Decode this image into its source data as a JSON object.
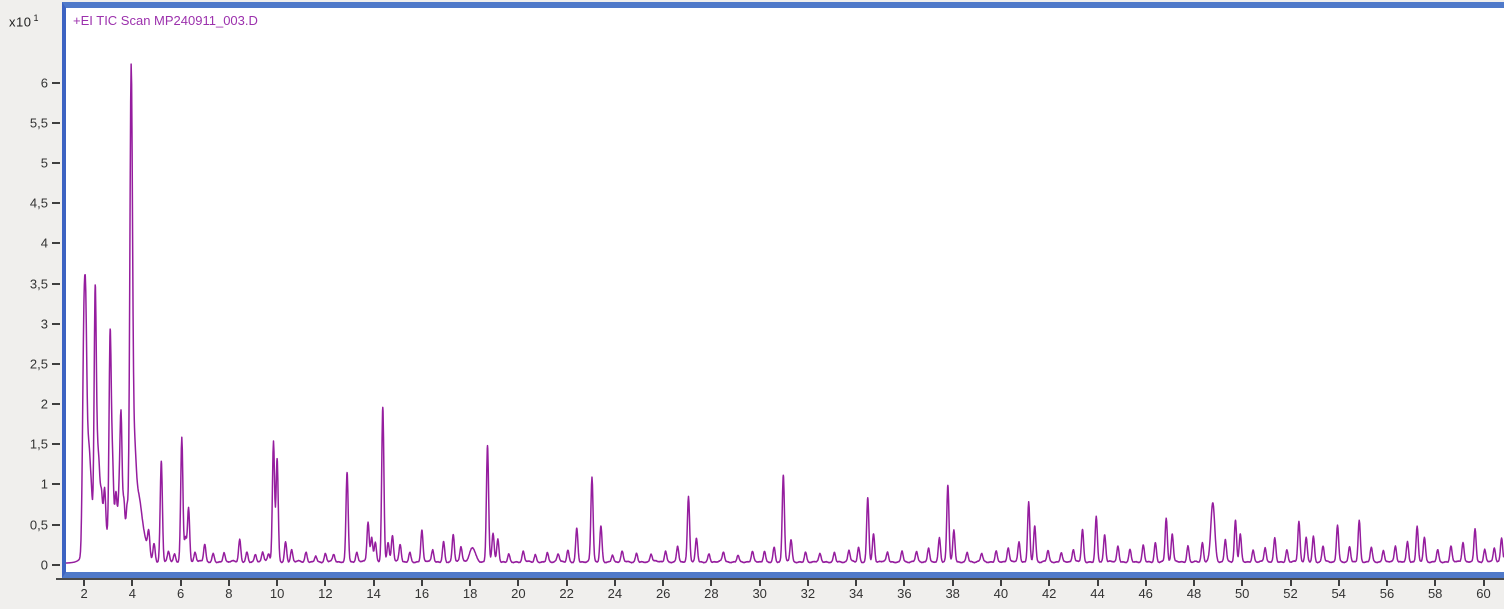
{
  "chart": {
    "title": "+EI TIC Scan MP240911_003.D",
    "title_color": "#9c31ad",
    "trace_color": "#951d9e",
    "frame_color": "#4f79c9",
    "y_exponent_label": "x10",
    "y_exponent": "1"
  },
  "chart_data": {
    "type": "line",
    "title": "+EI TIC Scan MP240911_003.D",
    "xlabel": "",
    "ylabel": "",
    "y_scale_factor_label": "x10^1",
    "xlim": [
      1.25,
      60.85
    ],
    "ylim": [
      -0.09,
      6.93
    ],
    "grid": false,
    "legend": false,
    "x_ticks": [
      2,
      4,
      6,
      8,
      10,
      12,
      14,
      16,
      18,
      20,
      22,
      24,
      26,
      28,
      30,
      32,
      34,
      36,
      38,
      40,
      42,
      44,
      46,
      48,
      50,
      52,
      54,
      56,
      58,
      60
    ],
    "y_ticks": [
      {
        "v": 0,
        "label": "0"
      },
      {
        "v": 0.5,
        "label": "0,5"
      },
      {
        "v": 1,
        "label": "1"
      },
      {
        "v": 1.5,
        "label": "1,5"
      },
      {
        "v": 2,
        "label": "2"
      },
      {
        "v": 2.5,
        "label": "2,5"
      },
      {
        "v": 3,
        "label": "3"
      },
      {
        "v": 3.5,
        "label": "3,5"
      },
      {
        "v": 4,
        "label": "4"
      },
      {
        "v": 4.5,
        "label": "4,5"
      },
      {
        "v": 5,
        "label": "5"
      },
      {
        "v": 5.5,
        "label": "5,5"
      },
      {
        "v": 6,
        "label": "6"
      }
    ],
    "baseline": 0.03,
    "noise_amplitude": 0.03,
    "peaks_format": "[retention_time_min, height_x10e1, optional_sigma_min]",
    "peaks": [
      [
        1.95,
        0.9
      ],
      [
        2.0,
        2.0
      ],
      [
        2.07,
        2.4
      ],
      [
        2.15,
        0.8
      ],
      [
        2.22,
        0.78
      ],
      [
        2.3,
        0.5
      ],
      [
        2.35,
        0.2,
        0.25
      ],
      [
        2.46,
        2.98
      ],
      [
        2.55,
        0.7
      ],
      [
        2.62,
        0.65
      ],
      [
        2.72,
        0.5
      ],
      [
        2.85,
        0.6
      ],
      [
        3.0,
        0.3,
        0.55
      ],
      [
        3.08,
        2.53
      ],
      [
        3.18,
        0.9
      ],
      [
        3.32,
        0.6
      ],
      [
        3.44,
        0.5
      ],
      [
        3.53,
        1.62
      ],
      [
        3.65,
        0.6
      ],
      [
        3.78,
        0.55
      ],
      [
        3.95,
        5.89,
        0.055
      ],
      [
        4.08,
        1.0,
        0.07
      ],
      [
        4.22,
        0.55,
        0.12
      ],
      [
        4.4,
        0.38,
        0.18
      ],
      [
        4.68,
        0.28
      ],
      [
        4.9,
        0.22
      ],
      [
        5.2,
        1.25
      ],
      [
        5.5,
        0.12
      ],
      [
        5.75,
        0.1
      ],
      [
        6.05,
        1.55
      ],
      [
        6.2,
        0.3
      ],
      [
        6.33,
        0.68
      ],
      [
        6.6,
        0.12
      ],
      [
        7.0,
        0.22
      ],
      [
        7.35,
        0.1
      ],
      [
        7.8,
        0.12
      ],
      [
        8.45,
        0.28
      ],
      [
        8.75,
        0.12
      ],
      [
        9.1,
        0.1
      ],
      [
        9.4,
        0.12
      ],
      [
        9.65,
        0.1
      ],
      [
        9.85,
        1.5
      ],
      [
        10.0,
        1.28
      ],
      [
        10.35,
        0.25
      ],
      [
        10.6,
        0.15
      ],
      [
        11.2,
        0.12
      ],
      [
        11.6,
        0.08
      ],
      [
        12.0,
        0.1
      ],
      [
        12.35,
        0.09
      ],
      [
        12.9,
        1.12
      ],
      [
        13.3,
        0.12
      ],
      [
        13.77,
        0.5
      ],
      [
        13.92,
        0.3
      ],
      [
        14.07,
        0.25
      ],
      [
        14.38,
        1.93
      ],
      [
        14.6,
        0.25
      ],
      [
        14.78,
        0.32
      ],
      [
        15.1,
        0.22
      ],
      [
        15.5,
        0.12
      ],
      [
        16.0,
        0.4
      ],
      [
        16.45,
        0.15
      ],
      [
        16.9,
        0.25
      ],
      [
        17.3,
        0.35
      ],
      [
        17.62,
        0.18
      ],
      [
        18.1,
        0.18,
        0.12
      ],
      [
        18.72,
        1.45
      ],
      [
        18.95,
        0.35
      ],
      [
        19.15,
        0.28
      ],
      [
        19.6,
        0.1
      ],
      [
        20.2,
        0.12
      ],
      [
        20.7,
        0.09
      ],
      [
        21.2,
        0.12
      ],
      [
        21.65,
        0.09
      ],
      [
        22.05,
        0.15
      ],
      [
        22.42,
        0.42
      ],
      [
        23.05,
        1.05
      ],
      [
        23.42,
        0.45
      ],
      [
        23.9,
        0.09
      ],
      [
        24.3,
        0.12
      ],
      [
        24.9,
        0.11
      ],
      [
        25.5,
        0.1
      ],
      [
        26.1,
        0.14
      ],
      [
        26.6,
        0.2
      ],
      [
        27.05,
        0.8
      ],
      [
        27.38,
        0.3
      ],
      [
        27.9,
        0.1
      ],
      [
        28.5,
        0.12
      ],
      [
        29.1,
        0.09
      ],
      [
        29.7,
        0.12
      ],
      [
        30.2,
        0.14
      ],
      [
        30.6,
        0.18
      ],
      [
        30.98,
        1.08
      ],
      [
        31.3,
        0.28
      ],
      [
        31.9,
        0.12
      ],
      [
        32.5,
        0.09
      ],
      [
        33.1,
        0.12
      ],
      [
        33.7,
        0.14
      ],
      [
        34.1,
        0.18
      ],
      [
        34.48,
        0.8
      ],
      [
        34.72,
        0.35
      ],
      [
        35.3,
        0.12
      ],
      [
        35.9,
        0.14
      ],
      [
        36.5,
        0.12
      ],
      [
        37.0,
        0.18
      ],
      [
        37.45,
        0.3
      ],
      [
        37.8,
        0.95
      ],
      [
        38.05,
        0.4
      ],
      [
        38.6,
        0.12
      ],
      [
        39.2,
        0.1
      ],
      [
        39.8,
        0.14
      ],
      [
        40.3,
        0.18
      ],
      [
        40.75,
        0.25
      ],
      [
        41.15,
        0.75
      ],
      [
        41.4,
        0.45
      ],
      [
        41.95,
        0.14
      ],
      [
        42.5,
        0.12
      ],
      [
        43.0,
        0.16
      ],
      [
        43.38,
        0.4
      ],
      [
        43.95,
        0.56
      ],
      [
        44.3,
        0.34
      ],
      [
        44.85,
        0.2
      ],
      [
        45.35,
        0.15
      ],
      [
        45.9,
        0.2
      ],
      [
        46.4,
        0.24
      ],
      [
        46.85,
        0.55
      ],
      [
        47.1,
        0.35
      ],
      [
        47.75,
        0.2
      ],
      [
        48.35,
        0.24
      ],
      [
        48.78,
        0.74,
        0.08
      ],
      [
        49.3,
        0.28
      ],
      [
        49.72,
        0.52
      ],
      [
        49.92,
        0.34
      ],
      [
        50.45,
        0.15
      ],
      [
        50.95,
        0.18
      ],
      [
        51.35,
        0.29
      ],
      [
        51.85,
        0.15
      ],
      [
        52.35,
        0.51
      ],
      [
        52.65,
        0.3
      ],
      [
        52.95,
        0.32
      ],
      [
        53.35,
        0.2
      ],
      [
        53.95,
        0.46
      ],
      [
        54.45,
        0.2
      ],
      [
        54.85,
        0.51
      ],
      [
        55.35,
        0.18
      ],
      [
        55.85,
        0.15
      ],
      [
        56.35,
        0.2
      ],
      [
        56.85,
        0.25
      ],
      [
        57.25,
        0.45
      ],
      [
        57.55,
        0.3
      ],
      [
        58.1,
        0.15
      ],
      [
        58.65,
        0.2
      ],
      [
        59.15,
        0.25
      ],
      [
        59.65,
        0.42
      ],
      [
        60.05,
        0.15
      ],
      [
        60.45,
        0.18
      ],
      [
        60.75,
        0.3
      ]
    ]
  }
}
